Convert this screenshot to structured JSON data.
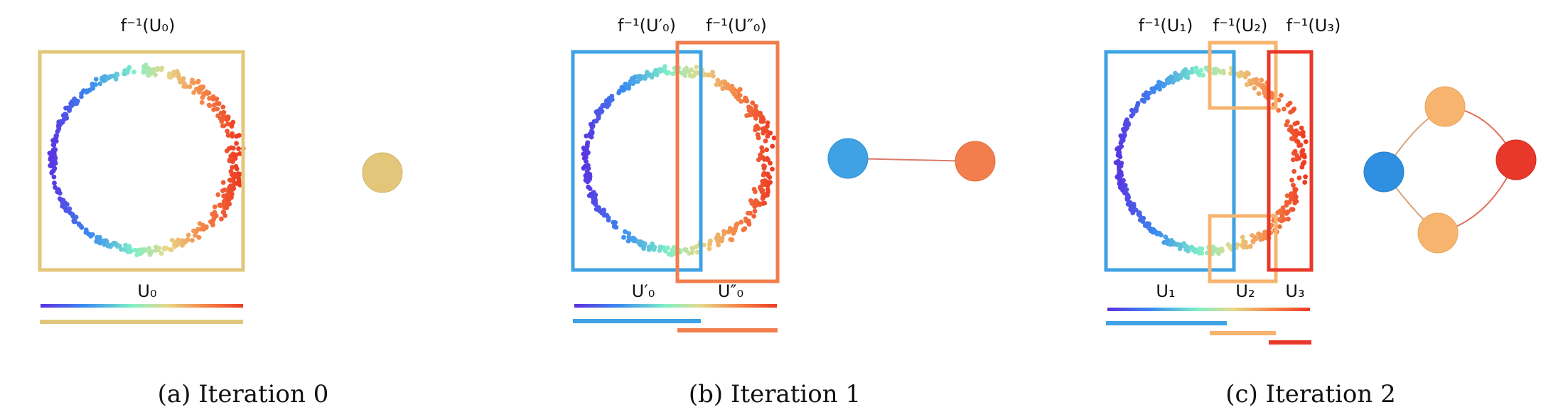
{
  "colors": {
    "beige": "#e2c67a",
    "blue": "#3ea2e4",
    "orange": "#f27e4e",
    "light_orange": "#f7b46e",
    "red": "#e8382a",
    "edge": "#d97a6a"
  },
  "panel_a": {
    "preimage_label": "f⁻¹(U₀)",
    "cover_label": "U₀",
    "caption": "(a) Iteration 0"
  },
  "panel_b": {
    "preimage_left_label": "f⁻¹(U′₀)",
    "preimage_right_label": "f⁻¹(U″₀)",
    "cover_left_label": "U′₀",
    "cover_right_label": "U″₀",
    "caption": "(b) Iteration 1"
  },
  "panel_c": {
    "preimage_1_label": "f⁻¹(U₁)",
    "preimage_2_label": "f⁻¹(U₂)",
    "preimage_3_label": "f⁻¹(U₃)",
    "cover_1_label": "U₁",
    "cover_2_label": "U₂",
    "cover_3_label": "U₃",
    "caption": "(c) Iteration 2"
  },
  "point_cloud": {
    "shape": "noisy-circle",
    "colormap": "rainbow"
  }
}
